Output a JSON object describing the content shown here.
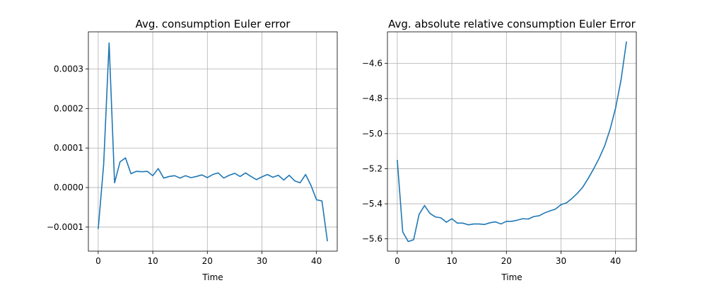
{
  "chart_data": [
    {
      "type": "line",
      "title": "Avg. consumption Euler error",
      "xlabel": "Time",
      "ylabel": "",
      "xlim": [
        -1.8,
        43.8
      ],
      "ylim": [
        -0.000161,
        0.000394
      ],
      "xticks": [
        0,
        10,
        20,
        30,
        40
      ],
      "xtick_labels": [
        "0",
        "10",
        "20",
        "30",
        "40"
      ],
      "yticks": [
        -0.0001,
        0.0,
        0.0001,
        0.0002,
        0.0003
      ],
      "ytick_labels": [
        "−0.0001",
        "0.0000",
        "0.0001",
        "0.0002",
        "0.0003"
      ],
      "grid": true,
      "color": "#1f77b4",
      "x": [
        0,
        1,
        2,
        3,
        4,
        5,
        6,
        7,
        8,
        9,
        10,
        11,
        12,
        13,
        14,
        15,
        16,
        17,
        18,
        19,
        20,
        21,
        22,
        23,
        24,
        25,
        26,
        27,
        28,
        29,
        30,
        31,
        32,
        33,
        34,
        35,
        36,
        37,
        38,
        39,
        40,
        41,
        42
      ],
      "y": [
        -0.000105,
        5.8e-05,
        0.000366,
        1.2e-05,
        6.5e-05,
        7.5e-05,
        3.5e-05,
        4.1e-05,
        4e-05,
        4.1e-05,
        3e-05,
        4.8e-05,
        2.4e-05,
        2.8e-05,
        3e-05,
        2.4e-05,
        3e-05,
        2.5e-05,
        2.8e-05,
        3.2e-05,
        2.5e-05,
        3.3e-05,
        3.7e-05,
        2.4e-05,
        3.1e-05,
        3.6e-05,
        2.8e-05,
        3.7e-05,
        2.8e-05,
        2e-05,
        2.7e-05,
        3.3e-05,
        2.6e-05,
        3.1e-05,
        1.9e-05,
        3.1e-05,
        1.7e-05,
        1.2e-05,
        3.3e-05,
        5e-06,
        -3.1e-05,
        -3.4e-05,
        -0.000136
      ]
    },
    {
      "type": "line",
      "title": "Avg. absolute relative consumption Euler Error",
      "xlabel": "Time",
      "ylabel": "",
      "xlim": [
        -1.8,
        43.8
      ],
      "ylim": [
        -5.67,
        -4.42
      ],
      "xticks": [
        0,
        10,
        20,
        30,
        40
      ],
      "xtick_labels": [
        "0",
        "10",
        "20",
        "30",
        "40"
      ],
      "yticks": [
        -5.6,
        -5.4,
        -5.2,
        -5.0,
        -4.8,
        -4.6
      ],
      "ytick_labels": [
        "−5.6",
        "−5.4",
        "−5.2",
        "−5.0",
        "−4.8",
        "−4.6"
      ],
      "grid": true,
      "color": "#1f77b4",
      "x": [
        0,
        1,
        2,
        3,
        4,
        5,
        6,
        7,
        8,
        9,
        10,
        11,
        12,
        13,
        14,
        15,
        16,
        17,
        18,
        19,
        20,
        21,
        22,
        23,
        24,
        25,
        26,
        27,
        28,
        29,
        30,
        31,
        32,
        33,
        34,
        35,
        36,
        37,
        38,
        39,
        40,
        41,
        42
      ],
      "y": [
        -5.15,
        -5.56,
        -5.615,
        -5.605,
        -5.46,
        -5.41,
        -5.455,
        -5.475,
        -5.48,
        -5.505,
        -5.485,
        -5.51,
        -5.51,
        -5.52,
        -5.515,
        -5.515,
        -5.518,
        -5.508,
        -5.503,
        -5.515,
        -5.5,
        -5.5,
        -5.493,
        -5.485,
        -5.487,
        -5.473,
        -5.468,
        -5.452,
        -5.44,
        -5.43,
        -5.405,
        -5.395,
        -5.37,
        -5.34,
        -5.305,
        -5.255,
        -5.2,
        -5.14,
        -5.07,
        -4.975,
        -4.855,
        -4.695,
        -4.475
      ]
    }
  ]
}
